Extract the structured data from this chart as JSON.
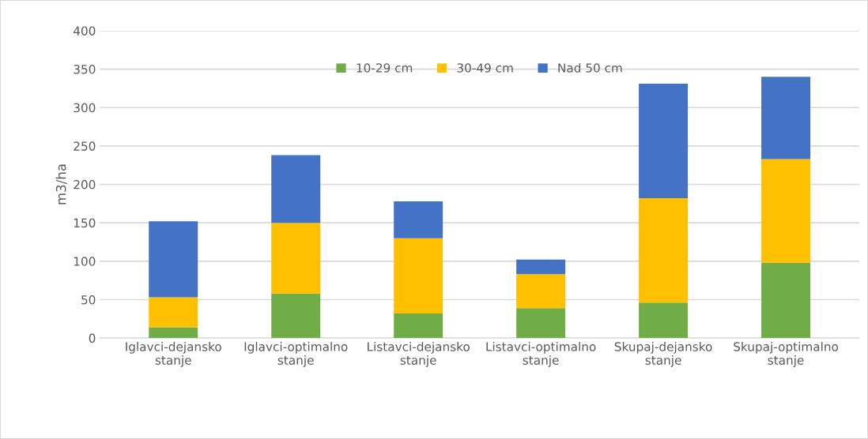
{
  "chart_data": {
    "type": "bar",
    "stacked": true,
    "ylabel": "m3/ha",
    "categories": [
      "Iglavci-dejansko stanje",
      "Iglavci-optimalno stanje",
      "Listavci-dejansko stanje",
      "Listavci-optimalno stanje",
      "Skupaj-dejansko stanje",
      "Skupaj-optimalno stanje"
    ],
    "series": [
      {
        "name": "10-29 cm",
        "color": "#70ad47",
        "values": [
          14,
          58,
          32,
          39,
          46,
          98
        ]
      },
      {
        "name": "30-49 cm",
        "color": "#ffc000",
        "values": [
          39,
          92,
          98,
          44,
          136,
          135
        ]
      },
      {
        "name": "Nad 50 cm",
        "color": "#4472c4",
        "values": [
          99,
          88,
          48,
          19,
          149,
          107
        ]
      }
    ],
    "ylim": [
      0,
      400
    ],
    "yticks": [
      0,
      50,
      100,
      150,
      200,
      250,
      300,
      350,
      400
    ],
    "grid": "y",
    "legend": "top"
  }
}
